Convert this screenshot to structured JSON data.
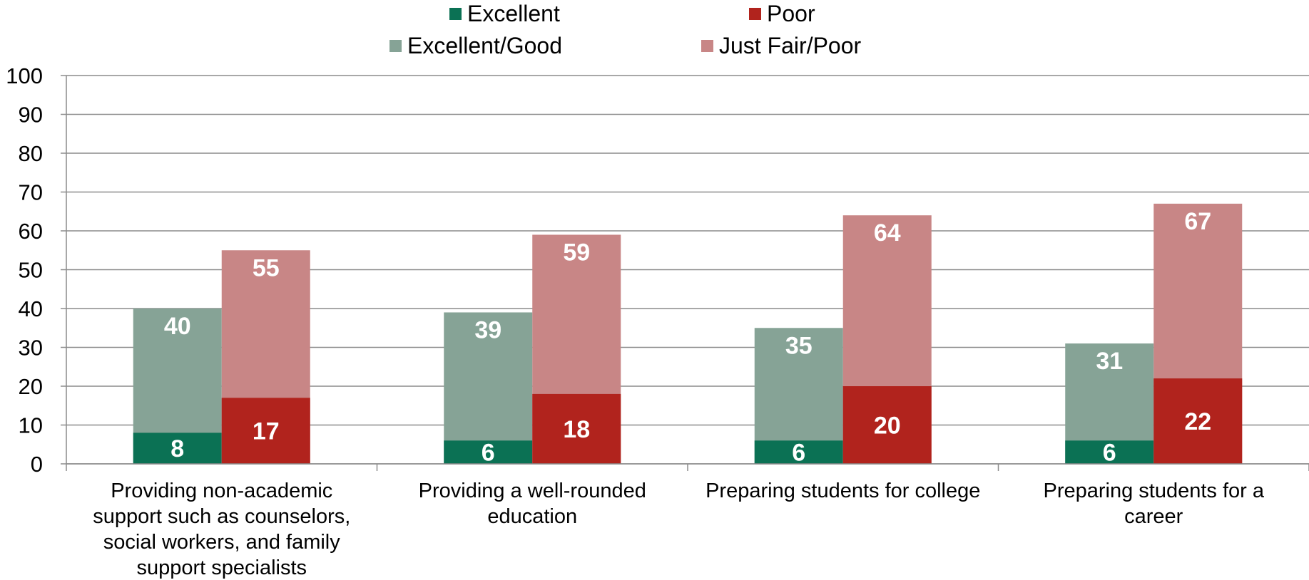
{
  "chart_data": {
    "type": "bar",
    "title": "",
    "xlabel": "",
    "ylabel": "",
    "ylim": [
      0,
      100
    ],
    "yticks": [
      "0",
      "10",
      "20",
      "30",
      "40",
      "50",
      "60",
      "70",
      "80",
      "90",
      "100"
    ],
    "grid": true,
    "legend_position": "top",
    "categories": [
      [
        "Providing non-academic",
        "support such as counselors,",
        "social workers, and family",
        "support specialists"
      ],
      [
        "Providing a well-rounded",
        "education"
      ],
      [
        "Preparing students for college"
      ],
      [
        "Preparing students for a",
        "career"
      ]
    ],
    "series": [
      {
        "name": "Excellent",
        "color": "#0b7154",
        "values": [
          8,
          6,
          6,
          6
        ],
        "group": "left"
      },
      {
        "name": "Excellent/Good",
        "color": "#86a396",
        "values": [
          40,
          39,
          35,
          31
        ],
        "group": "left"
      },
      {
        "name": "Poor",
        "color": "#b1231d",
        "values": [
          17,
          18,
          20,
          22
        ],
        "group": "right"
      },
      {
        "name": "Just Fair/Poor",
        "color": "#c88686",
        "values": [
          55,
          59,
          64,
          67
        ],
        "group": "right"
      }
    ]
  }
}
